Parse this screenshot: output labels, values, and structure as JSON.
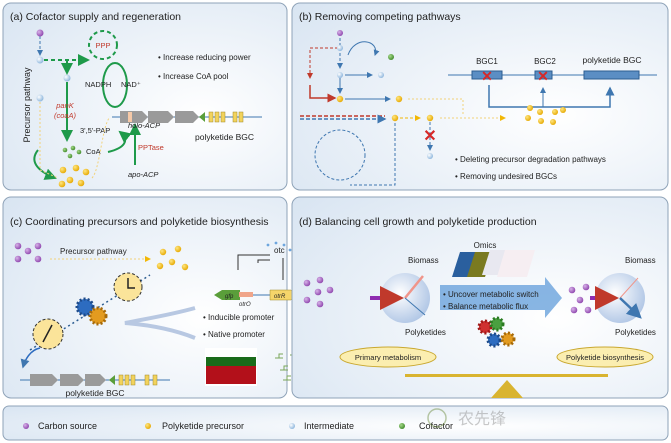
{
  "panels": {
    "a": {
      "title": "(a)  Cofactor supply and regeneration",
      "side_label": "Precursor pathway",
      "ppp": "PPP",
      "nadph": "NADPH",
      "nad": "NAD⁺",
      "pank": "panK",
      "coaa": "(coaA)",
      "pap": "3',5'-PAP",
      "coa": "CoA",
      "pptase": "PPTase",
      "holo_acp": "holo-ACP",
      "apo_acp": "apo-ACP",
      "bgc": "polyketide BGC",
      "bullets": [
        "Increase reducing power",
        "Increase CoA pool"
      ]
    },
    "b": {
      "title": "(b)  Removing competing pathways",
      "bgc1": "BGC1",
      "bgc2": "BGC2",
      "bgc": "polyketide BGC",
      "bullets": [
        "Deleting precursor degradation pathways",
        "Removing undesired BGCs"
      ]
    },
    "c": {
      "title": "(c)  Coordinating precursors and polyketide biosynthesis",
      "precursor_pathway": "Precursor pathway",
      "otc": "otc",
      "gfp": "gfp",
      "otro": "otrO",
      "otrr": "otrR",
      "bullets": [
        "Inducible promoter",
        "Native promoter"
      ],
      "bgc": "polyketide BGC"
    },
    "d": {
      "title": "(d)  Balancing cell growth and polyketide production",
      "omics": "Omics",
      "biomass": "Biomass",
      "polyketides": "Polyketides",
      "bullets": [
        "Uncover metabolic switch",
        "Balance metabolic flux"
      ],
      "primary": "Primary metabolism",
      "pk_bio": "Polyketide biosynthesis"
    }
  },
  "legend": [
    {
      "label": "Carbon source",
      "color": "#9b59b6"
    },
    {
      "label": "Polyketide precursor",
      "color": "#f2b705"
    },
    {
      "label": "Intermediate",
      "color": "#a9cbe8"
    },
    {
      "label": "Cofactor",
      "color": "#5a9e3a"
    }
  ],
  "watermark": "农先锋",
  "colors": {
    "panel_bg": "#e6eef7",
    "panel_border": "#8fa3b8",
    "green": "#1e9a4a",
    "red": "#c0392b",
    "blue": "#3f77b0",
    "yellow": "#f2b705"
  }
}
